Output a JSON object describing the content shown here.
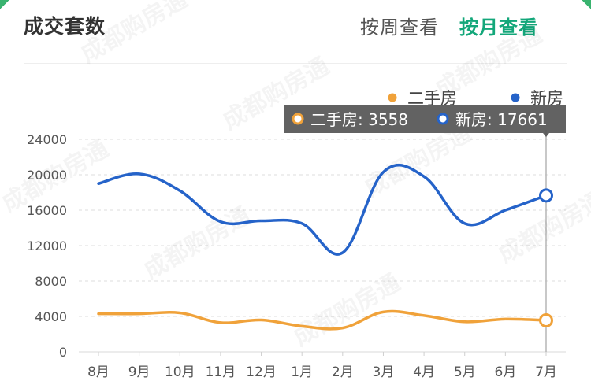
{
  "header": {
    "title": "成交套数",
    "tab_week": "按周查看",
    "tab_month": "按月查看"
  },
  "colors": {
    "accent": "#13a77a",
    "second_hand": "#f0a23a",
    "new_house": "#2563c9",
    "tooltip_bg": "#555555"
  },
  "watermark": "成都购房通",
  "tooltip": {
    "items": [
      {
        "name": "二手房",
        "value": "3558"
      },
      {
        "name": "新房",
        "value": "17661"
      }
    ]
  },
  "chart_data": {
    "type": "line",
    "categories": [
      "8月",
      "9月",
      "10月",
      "11月",
      "12月",
      "1月",
      "2月",
      "3月",
      "4月",
      "5月",
      "6月",
      "7月"
    ],
    "series": [
      {
        "name": "二手房",
        "values": [
          4300,
          4300,
          4400,
          3300,
          3600,
          2900,
          2700,
          4500,
          4100,
          3400,
          3700,
          3558
        ]
      },
      {
        "name": "新房",
        "values": [
          19000,
          20100,
          18200,
          14700,
          14800,
          14500,
          11200,
          20300,
          19800,
          14500,
          16000,
          17661
        ]
      }
    ],
    "yticks": [
      0,
      4000,
      8000,
      12000,
      16000,
      20000,
      24000
    ],
    "ylim": [
      0,
      24000
    ],
    "legend_position": "top-right",
    "grid": true,
    "highlight_index": 11
  }
}
